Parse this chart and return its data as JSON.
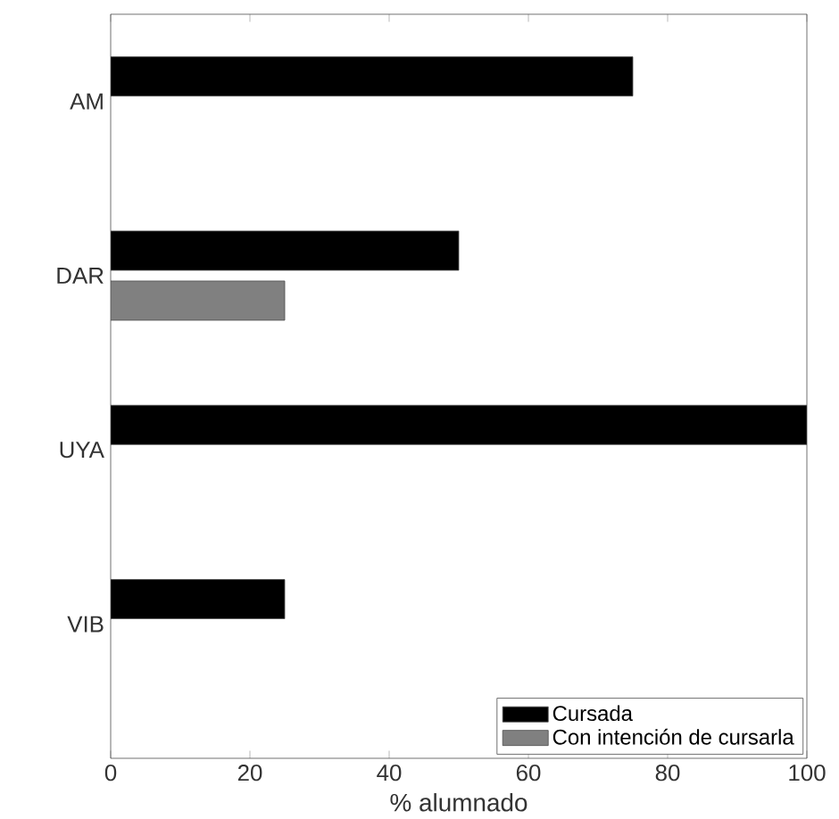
{
  "chart_data": {
    "type": "bar",
    "orientation": "horizontal",
    "categories": [
      "AM",
      "DAR",
      "UYA",
      "VIB"
    ],
    "xlabel": "% alumnado",
    "xlim": [
      0,
      100
    ],
    "xticks": [
      0,
      20,
      40,
      60,
      80,
      100
    ],
    "legend": "bottom right",
    "grid": false,
    "series": [
      {
        "name": "Cursada",
        "color": "#000000",
        "values": [
          75,
          50,
          100,
          25
        ]
      },
      {
        "name": "Con intención de cursarla",
        "color": "#808080",
        "values": [
          null,
          25,
          null,
          null
        ]
      }
    ]
  }
}
